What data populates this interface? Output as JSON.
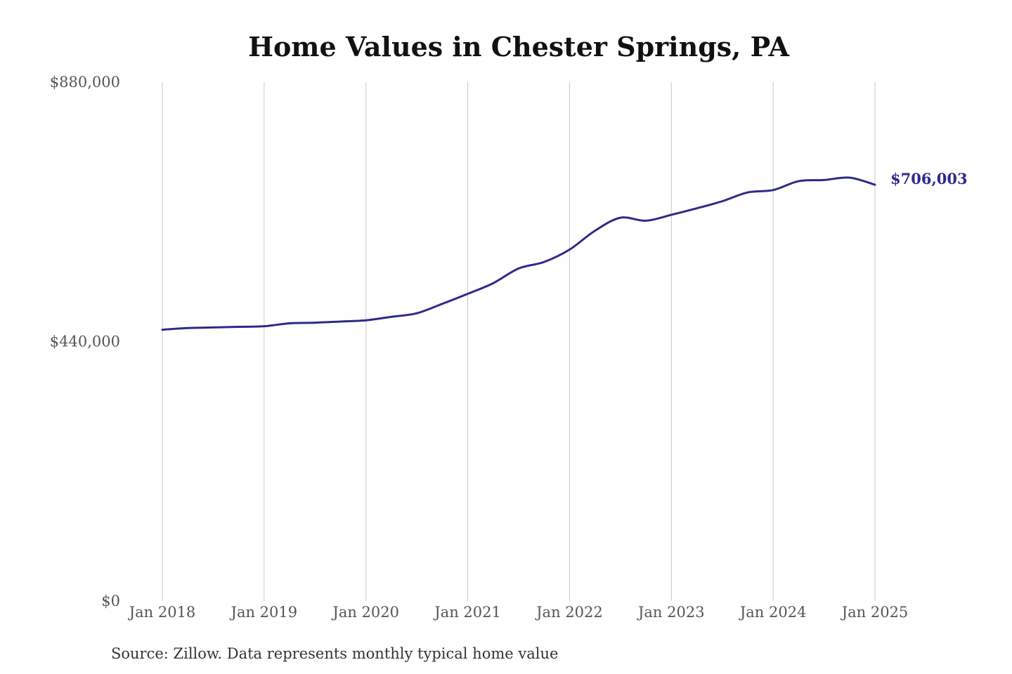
{
  "chart_data": {
    "type": "line",
    "title": "Home Values in Chester Springs, PA",
    "source": "Source: Zillow. Data represents monthly typical home value",
    "ylim": [
      0,
      880000
    ],
    "y_ticks": [
      {
        "value": 0,
        "label": "$0"
      },
      {
        "value": 440000,
        "label": "$440,000"
      },
      {
        "value": 880000,
        "label": "$880,000"
      }
    ],
    "x_range": [
      "2018-01",
      "2025-01"
    ],
    "x_ticks": [
      {
        "date": "2018-01",
        "label": "Jan 2018"
      },
      {
        "date": "2019-01",
        "label": "Jan 2019"
      },
      {
        "date": "2020-01",
        "label": "Jan 2020"
      },
      {
        "date": "2021-01",
        "label": "Jan 2021"
      },
      {
        "date": "2022-01",
        "label": "Jan 2022"
      },
      {
        "date": "2023-01",
        "label": "Jan 2023"
      },
      {
        "date": "2024-01",
        "label": "Jan 2024"
      },
      {
        "date": "2025-01",
        "label": "Jan 2025"
      }
    ],
    "grid": {
      "vertical": true,
      "horizontal": false
    },
    "line_color": "#2e2a8a",
    "end_label": "$706,003",
    "series": [
      {
        "x": [
          "2018-01",
          "2018-04",
          "2018-07",
          "2018-10",
          "2019-01",
          "2019-04",
          "2019-07",
          "2019-10",
          "2020-01",
          "2020-04",
          "2020-07",
          "2020-10",
          "2021-01",
          "2021-04",
          "2021-07",
          "2021-10",
          "2022-01",
          "2022-04",
          "2022-07",
          "2022-10",
          "2023-01",
          "2023-04",
          "2023-07",
          "2023-10",
          "2024-01",
          "2024-04",
          "2024-07",
          "2024-10",
          "2025-01"
        ],
        "y": [
          460000,
          463000,
          464000,
          465000,
          466000,
          471000,
          472000,
          474000,
          476000,
          482000,
          488000,
          504000,
          521000,
          539000,
          564000,
          575000,
          596000,
          628000,
          650000,
          645000,
          655000,
          666000,
          678000,
          693000,
          697000,
          712000,
          714000,
          718000,
          706003
        ]
      }
    ]
  }
}
